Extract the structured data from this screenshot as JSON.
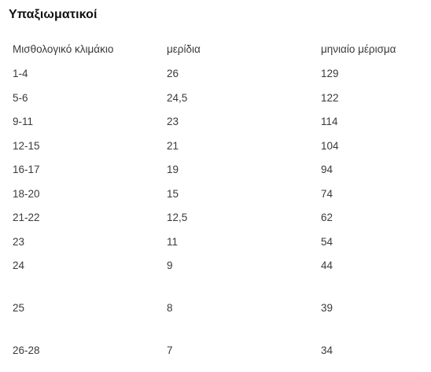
{
  "title": "Υπαξιωματικοί",
  "table": {
    "columns": [
      "Μισθολογικό κλιμάκιο",
      "μερίδια",
      "μηνιαίο μέρισμα"
    ],
    "rows": [
      [
        "1-4",
        "26",
        "129"
      ],
      [
        "5-6",
        "24,5",
        "122"
      ],
      [
        "9-11",
        "23",
        "114"
      ],
      [
        "12-15",
        "21",
        "104"
      ],
      [
        "16-17",
        "19",
        "94"
      ],
      [
        "18-20",
        "15",
        "74"
      ],
      [
        "21-22",
        "12,5",
        "62"
      ],
      [
        "23",
        "11",
        "54"
      ],
      [
        "24",
        "9",
        "44"
      ],
      [
        "25",
        "8",
        "39"
      ],
      [
        "26-28",
        "7",
        "34"
      ]
    ]
  }
}
